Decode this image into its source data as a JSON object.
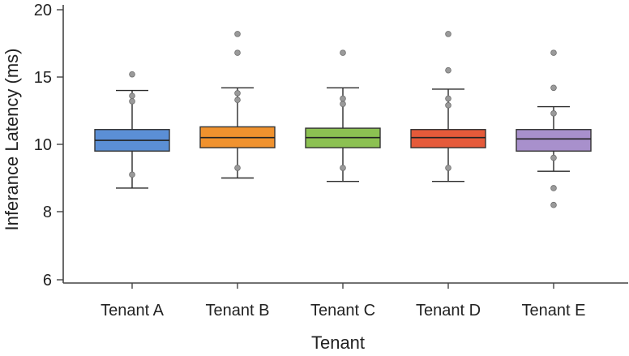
{
  "chart_data": {
    "type": "box",
    "xlabel": "Tenant",
    "ylabel": "Inferance Latency (ms)",
    "y_ticks": [
      6,
      8,
      10,
      15,
      20
    ],
    "y_tick_labels": [
      "6",
      "8",
      "10",
      "15",
      "20"
    ],
    "categories": [
      "Tenant A",
      "Tenant B",
      "Tenant C",
      "Tenant D",
      "Tenant E"
    ],
    "series": [
      {
        "category": "Tenant A",
        "color": "#5b8fd6",
        "whisker_low": 8.7,
        "q1": 9.8,
        "median": 10.3,
        "q3": 11.1,
        "whisker_high": 14.0,
        "outliers": [
          9.1,
          13.2,
          13.6,
          15.2
        ]
      },
      {
        "category": "Tenant B",
        "color": "#f0922e",
        "whisker_low": 9.0,
        "q1": 9.9,
        "median": 10.5,
        "q3": 11.3,
        "whisker_high": 14.2,
        "outliers": [
          9.3,
          13.3,
          13.8,
          16.8,
          18.2
        ]
      },
      {
        "category": "Tenant C",
        "color": "#8cc152",
        "whisker_low": 8.9,
        "q1": 9.9,
        "median": 10.5,
        "q3": 11.2,
        "whisker_high": 14.2,
        "outliers": [
          9.3,
          13.0,
          13.4,
          16.8
        ]
      },
      {
        "category": "Tenant D",
        "color": "#e55a3a",
        "whisker_low": 8.9,
        "q1": 9.9,
        "median": 10.5,
        "q3": 11.1,
        "whisker_high": 14.1,
        "outliers": [
          9.3,
          12.9,
          13.4,
          15.5,
          18.2
        ]
      },
      {
        "category": "Tenant E",
        "color": "#a890cc",
        "whisker_low": 9.2,
        "q1": 9.8,
        "median": 10.4,
        "q3": 11.1,
        "whisker_high": 12.8,
        "outliers": [
          8.2,
          8.7,
          9.6,
          12.3,
          14.2,
          16.8
        ]
      }
    ]
  }
}
